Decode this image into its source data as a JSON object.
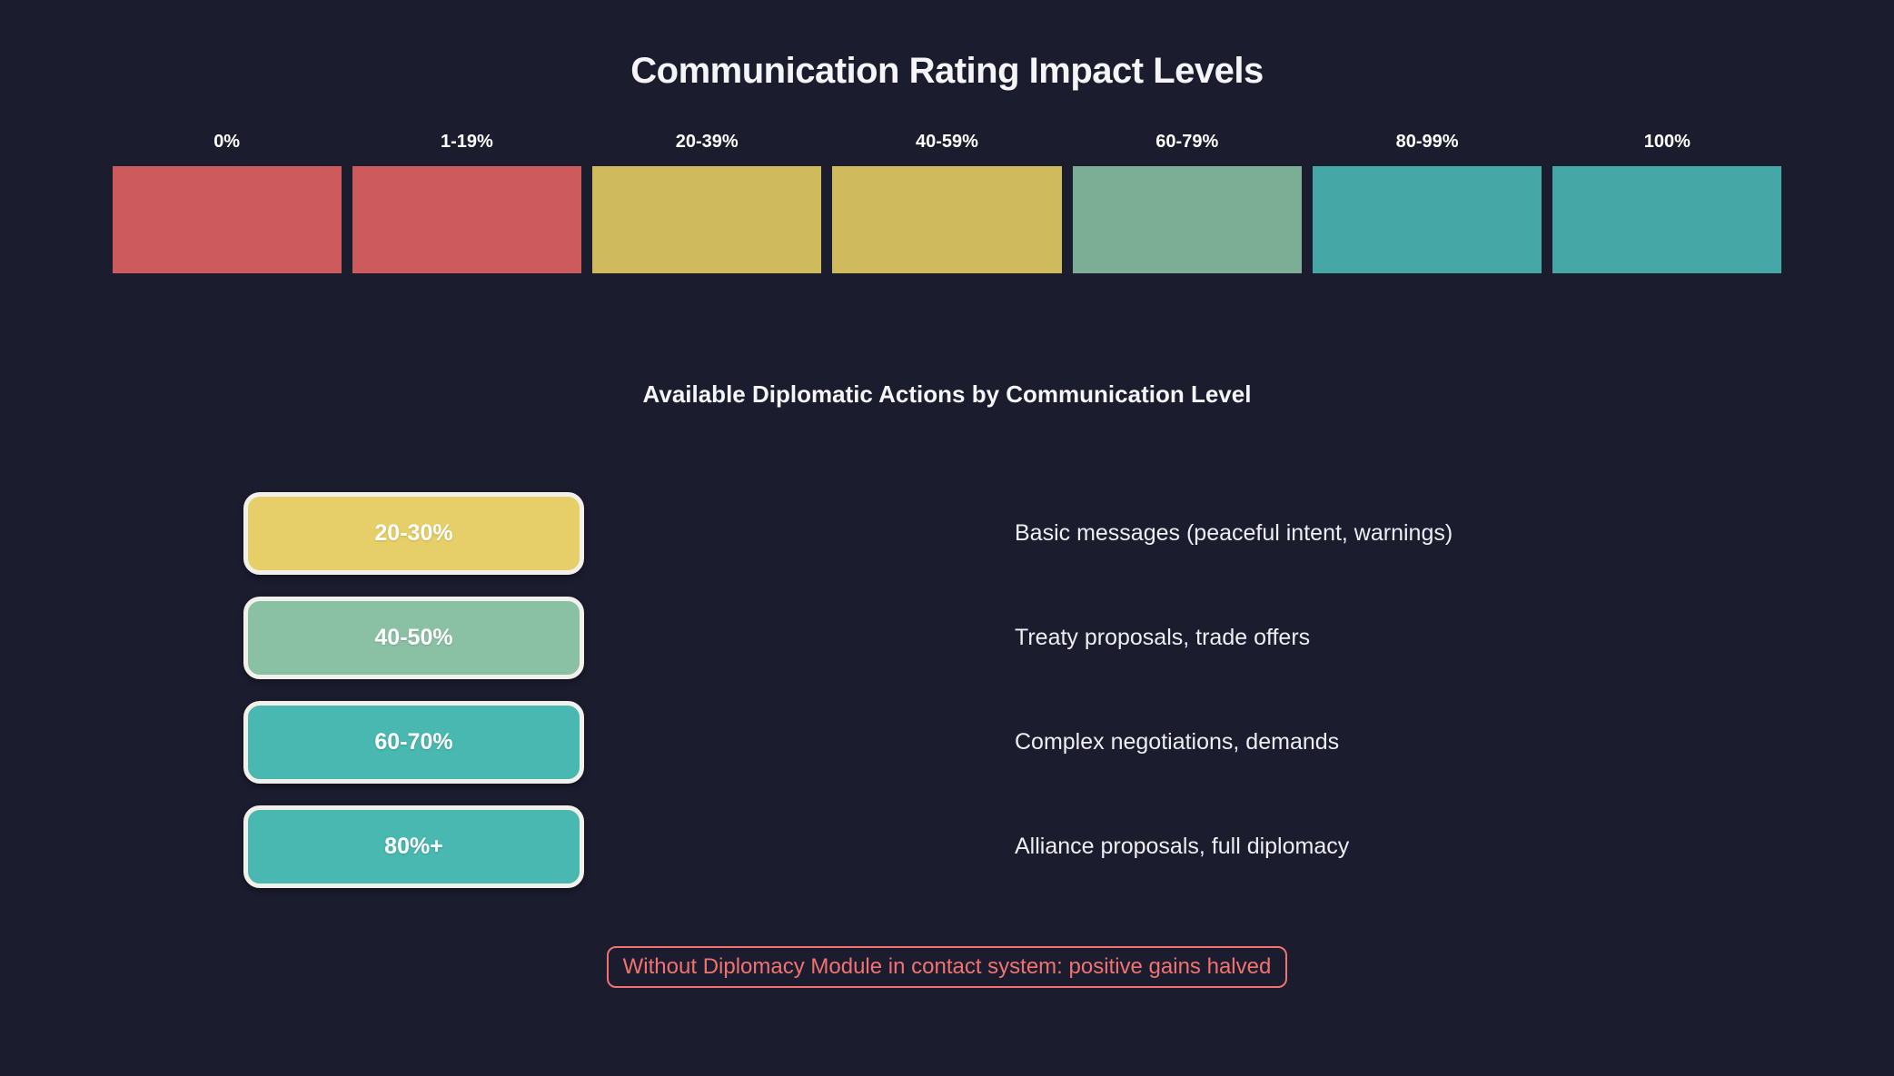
{
  "page": {
    "title": "Communication Rating Impact Levels",
    "subtitle": "Available Diplomatic Actions by Communication Level",
    "note": "Without Diplomacy Module in contact system: positive gains halved"
  },
  "colors": {
    "background": "#1b1c2e",
    "scale_red": "#cd5b5e",
    "scale_yellow": "#cfbb5e",
    "scale_green": "#7cae96",
    "scale_teal": "#45a8a6",
    "badge_yellow": "#e6cf68",
    "badge_green": "#8ac0a4",
    "badge_teal": "#49b8b0",
    "badge_border": "#f2f0ea",
    "note_red": "#f27272",
    "text": "#f5f5f7"
  },
  "impact_scale": [
    {
      "label": "0%",
      "color": "#cd5b5e"
    },
    {
      "label": "1-19%",
      "color": "#cd5b5e"
    },
    {
      "label": "20-39%",
      "color": "#cfbb5e"
    },
    {
      "label": "40-59%",
      "color": "#cfbb5e"
    },
    {
      "label": "60-79%",
      "color": "#7cae96"
    },
    {
      "label": "80-99%",
      "color": "#45a8a6"
    },
    {
      "label": "100%",
      "color": "#45a8a6"
    }
  ],
  "actions": [
    {
      "range": "20-30%",
      "color": "#e6cf68",
      "description": "Basic messages (peaceful intent, warnings)"
    },
    {
      "range": "40-50%",
      "color": "#8ac0a4",
      "description": "Treaty proposals, trade offers"
    },
    {
      "range": "60-70%",
      "color": "#49b8b0",
      "description": "Complex negotiations, demands"
    },
    {
      "range": "80%+",
      "color": "#49b8b0",
      "description": "Alliance proposals, full diplomacy"
    }
  ]
}
